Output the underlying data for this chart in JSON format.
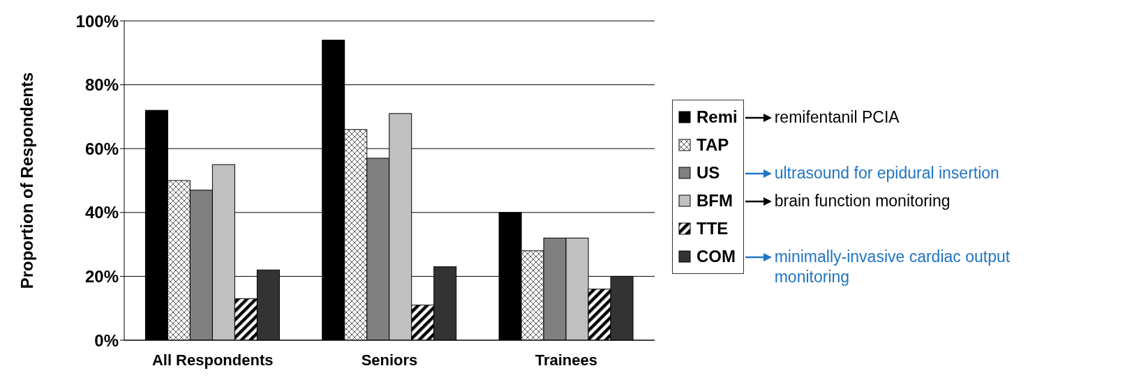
{
  "chart_data": {
    "type": "bar",
    "ylabel": "Proportion of Respondents",
    "categories": [
      "All Respondents",
      "Seniors",
      "Trainees"
    ],
    "series": [
      {
        "name": "Remi",
        "color": "#000000",
        "values": [
          72,
          94,
          40
        ]
      },
      {
        "name": "TAP",
        "color": "#ffffff",
        "values": [
          50,
          66,
          28
        ]
      },
      {
        "name": "US",
        "color": "#808080",
        "values": [
          47,
          57,
          32
        ]
      },
      {
        "name": "BFM",
        "color": "#c0c0c0",
        "values": [
          55,
          71,
          32
        ]
      },
      {
        "name": "TTE",
        "color": "#ffffff",
        "values": [
          13,
          11,
          16
        ]
      },
      {
        "name": "COM",
        "color": "#333333",
        "values": [
          22,
          23,
          20
        ]
      }
    ],
    "ylim": [
      0,
      100
    ],
    "yticks": [
      {
        "value": 0,
        "label": "0%"
      },
      {
        "value": 20,
        "label": "20%"
      },
      {
        "value": 40,
        "label": "40%"
      },
      {
        "value": 60,
        "label": "60%"
      },
      {
        "value": 80,
        "label": "80%"
      },
      {
        "value": 100,
        "label": "100%"
      }
    ],
    "grid": "y",
    "legend": "right",
    "annotations": [
      "remifentanil PCIA",
      "ultrasound for epidural insertion",
      "brain function monitoring",
      "minimally-invasive cardiac output monitoring"
    ]
  }
}
